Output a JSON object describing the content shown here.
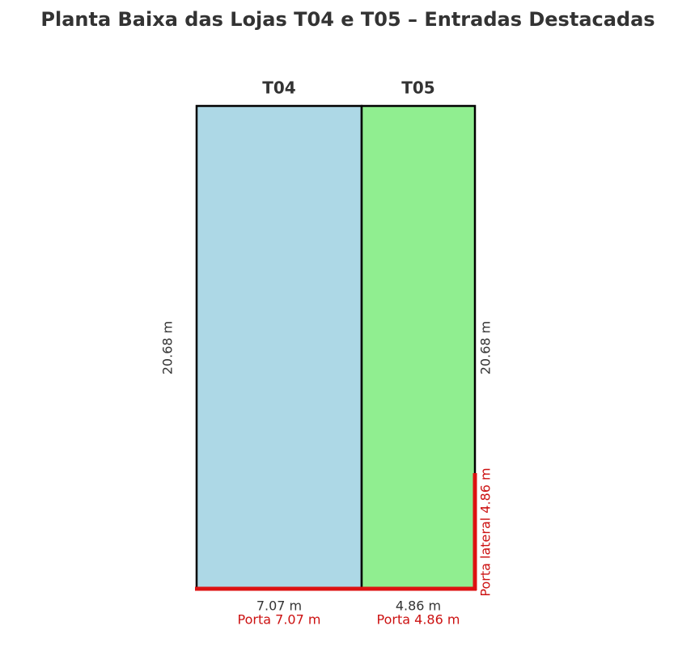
{
  "title": "Planta Baixa das Lojas T04 e T05 – Entradas Destacadas",
  "stores": [
    {
      "label": "T04",
      "width": "7.07 m",
      "depth": "20.68 m",
      "door": "Porta 7.07 m"
    },
    {
      "label": "T05",
      "width": "4.86 m",
      "depth": "20.68 m",
      "door": "Porta 4.86 m",
      "side_door": "Porta lateral 4.86 m"
    }
  ]
}
